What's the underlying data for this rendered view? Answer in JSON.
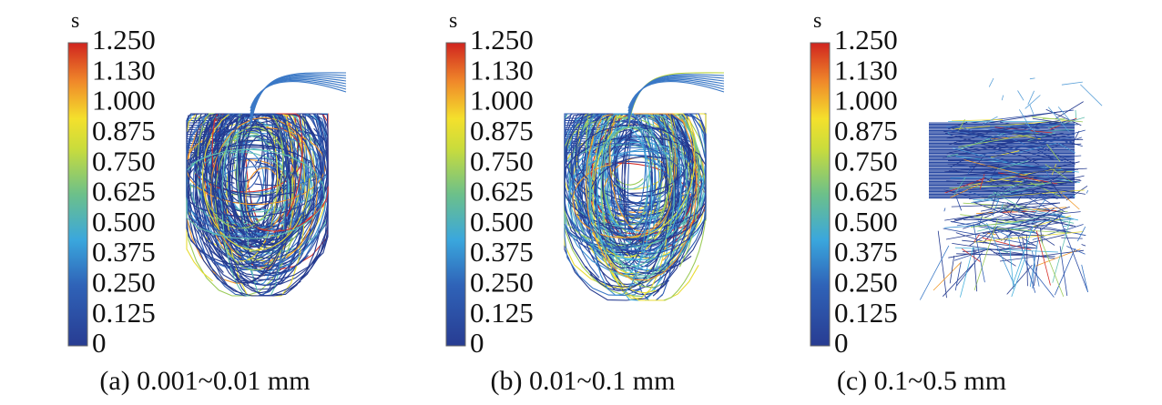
{
  "panels": [
    {
      "unit": "s",
      "ticks": [
        "1.250",
        "1.130",
        "1.000",
        "0.875",
        "0.750",
        "0.625",
        "0.500",
        "0.375",
        "0.250",
        "0.125",
        "0"
      ],
      "caption": "(a) 0.001~0.01 mm"
    },
    {
      "unit": "s",
      "ticks": [
        "1.250",
        "1.130",
        "1.000",
        "0.875",
        "0.750",
        "0.625",
        "0.500",
        "0.375",
        "0.250",
        "0.125",
        "0"
      ],
      "caption": "(b) 0.01~0.1 mm"
    },
    {
      "unit": "s",
      "ticks": [
        "1.250",
        "1.130",
        "1.000",
        "0.875",
        "0.750",
        "0.625",
        "0.500",
        "0.375",
        "0.250",
        "0.125",
        "0"
      ],
      "caption": "(c) 0.1~0.5 mm"
    }
  ]
}
